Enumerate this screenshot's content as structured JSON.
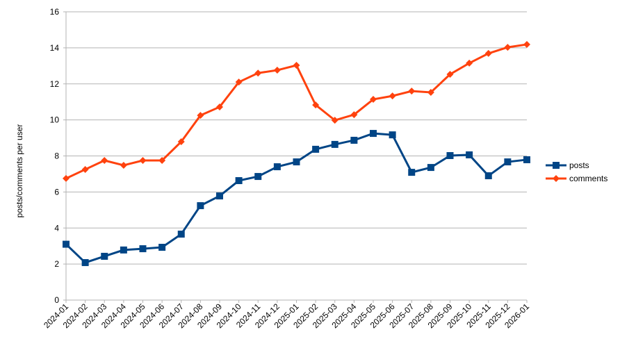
{
  "chart_data": {
    "type": "line",
    "title": "",
    "xlabel": "",
    "ylabel": "posts/comments per user",
    "ylim": [
      0,
      16
    ],
    "yticks": [
      0,
      2,
      4,
      6,
      8,
      10,
      12,
      14,
      16
    ],
    "grid": "horizontal",
    "legend": "right",
    "categories": [
      "2024-01",
      "2024-02",
      "2024-03",
      "2024-04",
      "2024-05",
      "2024-06",
      "2024-07",
      "2024-08",
      "2024-09",
      "2024-10",
      "2024-11",
      "2024-12",
      "2025-01",
      "2025-02",
      "2025-03",
      "2025-04",
      "2025-05",
      "2025-06",
      "2025-07",
      "2025-08",
      "2025-09",
      "2025-10",
      "2025-11",
      "2025-12",
      "2026-01"
    ],
    "series": [
      {
        "name": "posts",
        "color": "#004586",
        "marker": "square",
        "values": [
          3.1,
          2.08,
          2.43,
          2.78,
          2.85,
          2.93,
          3.66,
          5.24,
          5.78,
          6.63,
          6.86,
          7.4,
          7.67,
          8.37,
          8.64,
          8.87,
          9.25,
          9.17,
          7.09,
          7.36,
          8.02,
          8.06,
          6.9,
          7.67,
          7.79
        ]
      },
      {
        "name": "comments",
        "color": "#ff420e",
        "marker": "diamond",
        "values": [
          6.75,
          7.25,
          7.75,
          7.48,
          7.75,
          7.75,
          8.79,
          10.25,
          10.72,
          12.1,
          12.6,
          12.76,
          13.03,
          10.83,
          9.98,
          10.29,
          11.14,
          11.33,
          11.6,
          11.53,
          12.53,
          13.15,
          13.69,
          14.03,
          14.19
        ]
      }
    ]
  }
}
